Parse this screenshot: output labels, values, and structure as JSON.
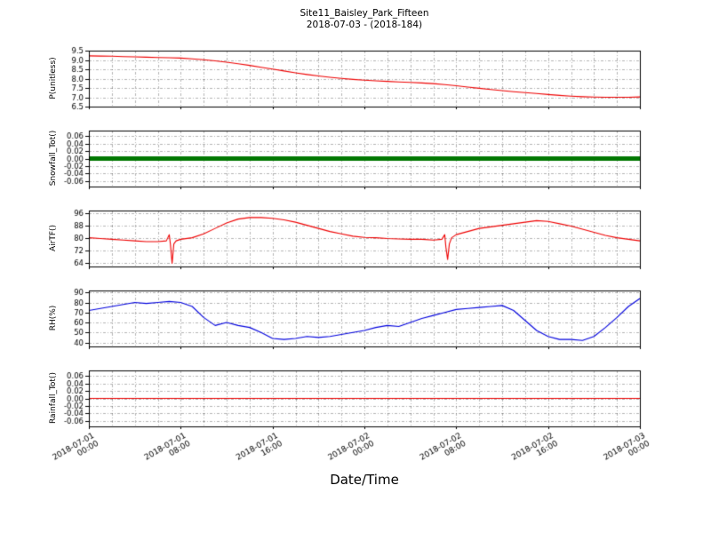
{
  "chart_data": {
    "type": "line",
    "title": "Site11_Baisley_Park_Fifteen",
    "subtitle": "2018-07-03 - (2018-184)",
    "xlabel": "Date/Time",
    "x_range": [
      0,
      48
    ],
    "x_grid_step": 2,
    "x_major_ticks": [
      0,
      8,
      16,
      24,
      32,
      40,
      48
    ],
    "x_tick_labels": [
      [
        "2018-07-01",
        "00:00"
      ],
      [
        "2018-07-01",
        "08:00"
      ],
      [
        "2018-07-01",
        "16:00"
      ],
      [
        "2018-07-02",
        "00:00"
      ],
      [
        "2018-07-02",
        "08:00"
      ],
      [
        "2018-07-02",
        "16:00"
      ],
      [
        "2018-07-03",
        "00:00"
      ]
    ],
    "grid": true,
    "legend": "none",
    "panels": [
      {
        "name": "p-unitless",
        "ylabel": "P(unitless)",
        "ylim": [
          6.5,
          9.5
        ],
        "yticks": [
          6.5,
          7.0,
          7.5,
          8.0,
          8.5,
          9.0,
          9.5
        ],
        "ytick_labels": [
          "6.5",
          "7.0",
          "7.5",
          "8.0",
          "8.5",
          "9.0",
          "9.5"
        ],
        "color": "#ee0000",
        "line_width": 1.1,
        "x": [
          0,
          1,
          2,
          3,
          4,
          5,
          6,
          7,
          8,
          9,
          10,
          11,
          12,
          13,
          14,
          15,
          16,
          17,
          18,
          19,
          20,
          21,
          22,
          23,
          24,
          25,
          26,
          27,
          28,
          29,
          30,
          31,
          32,
          33,
          34,
          35,
          36,
          37,
          38,
          39,
          40,
          41,
          42,
          43,
          44,
          45,
          46,
          47,
          48
        ],
        "y": [
          9.22,
          9.21,
          9.2,
          9.18,
          9.17,
          9.15,
          9.13,
          9.12,
          9.1,
          9.06,
          9.01,
          8.95,
          8.88,
          8.8,
          8.71,
          8.61,
          8.51,
          8.41,
          8.31,
          8.22,
          8.14,
          8.07,
          8.01,
          7.96,
          7.92,
          7.88,
          7.85,
          7.82,
          7.8,
          7.77,
          7.73,
          7.68,
          7.62,
          7.55,
          7.48,
          7.42,
          7.36,
          7.3,
          7.25,
          7.2,
          7.15,
          7.1,
          7.06,
          7.03,
          7.01,
          7.0,
          7.0,
          7.0,
          7.02
        ]
      },
      {
        "name": "snowfall-total",
        "ylabel": "Snowfall_Tot()",
        "ylim": [
          -0.075,
          0.075
        ],
        "yticks": [
          -0.06,
          -0.04,
          -0.02,
          0.0,
          0.02,
          0.04,
          0.06
        ],
        "ytick_labels": [
          "-0.06",
          "-0.04",
          "-0.02",
          "0.00",
          "0.02",
          "0.04",
          "0.06"
        ],
        "color": "#007700",
        "line_width": 5,
        "x": [
          0,
          48
        ],
        "y": [
          0.0,
          0.0
        ]
      },
      {
        "name": "air-temperature",
        "ylabel": "AirTF()",
        "ylim": [
          61.5,
          97.5
        ],
        "yticks": [
          64,
          72,
          80,
          88,
          96
        ],
        "ytick_labels": [
          "64",
          "72",
          "80",
          "88",
          "96"
        ],
        "color": "#ee0000",
        "line_width": 1.1,
        "x": [
          0,
          1,
          2,
          3,
          4,
          5,
          6,
          6.75,
          7,
          7.1,
          7.25,
          7.4,
          7.6,
          8,
          9,
          10,
          11,
          12,
          13,
          14,
          15,
          16,
          17,
          18,
          19,
          20,
          21,
          22,
          23,
          24,
          25,
          26,
          27,
          28,
          29,
          30,
          30.75,
          31,
          31.1,
          31.25,
          31.4,
          31.6,
          32,
          33,
          34,
          35,
          36,
          37,
          38,
          39,
          40,
          41,
          42,
          43,
          44,
          45,
          46,
          47,
          48
        ],
        "y": [
          80,
          79.5,
          79,
          78.5,
          78,
          77.5,
          77.5,
          78,
          82,
          76,
          63.5,
          76,
          78,
          79,
          80,
          82.5,
          86,
          89.5,
          92,
          93,
          93,
          92.5,
          91.5,
          90,
          88,
          86,
          84,
          82.5,
          81,
          80.2,
          80,
          79.5,
          79.2,
          79,
          79,
          78.5,
          79,
          82,
          74,
          66,
          76,
          80,
          82,
          84,
          86,
          87,
          88,
          89,
          90,
          91,
          90.5,
          89,
          87.5,
          85.5,
          83.5,
          81.5,
          80,
          79,
          78
        ]
      },
      {
        "name": "relative-humidity",
        "ylabel": "RH(%)",
        "ylim": [
          36,
          92
        ],
        "yticks": [
          40,
          50,
          60,
          70,
          80,
          90
        ],
        "ytick_labels": [
          "40",
          "50",
          "60",
          "70",
          "80",
          "90"
        ],
        "color": "#0000dd",
        "line_width": 1.1,
        "x": [
          0,
          1,
          2,
          3,
          4,
          5,
          6,
          7,
          8,
          9,
          10,
          11,
          12,
          13,
          14,
          15,
          16,
          17,
          18,
          19,
          20,
          21,
          22,
          23,
          24,
          25,
          26,
          27,
          28,
          29,
          30,
          31,
          32,
          33,
          34,
          35,
          36,
          37,
          38,
          39,
          40,
          41,
          42,
          43,
          44,
          45,
          46,
          47,
          48
        ],
        "y": [
          72,
          74,
          76,
          78,
          80,
          79,
          80,
          81,
          80,
          76,
          65,
          57,
          60,
          57,
          55,
          50,
          44,
          43,
          44,
          46,
          45,
          46,
          48,
          50,
          52,
          55,
          57,
          56,
          60,
          64,
          67,
          70,
          73,
          74,
          75,
          76,
          77,
          72,
          62,
          52,
          46,
          43,
          43,
          42,
          46,
          55,
          65,
          76,
          84
        ]
      },
      {
        "name": "rainfall-total",
        "ylabel": "Rainfall_Tot()",
        "ylim": [
          -0.075,
          0.075
        ],
        "yticks": [
          -0.06,
          -0.04,
          -0.02,
          0.0,
          0.02,
          0.04,
          0.06
        ],
        "ytick_labels": [
          "-0.06",
          "-0.04",
          "-0.02",
          "0.00",
          "0.02",
          "0.04",
          "0.06"
        ],
        "color": "#ee0000",
        "line_width": 1.2,
        "x": [
          0,
          48
        ],
        "y": [
          0.0,
          0.0
        ]
      }
    ]
  }
}
